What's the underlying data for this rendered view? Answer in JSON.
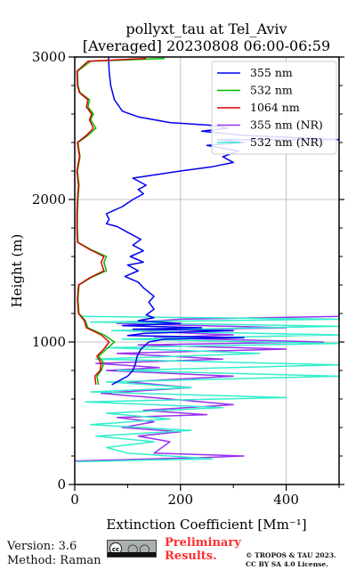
{
  "chart_data": {
    "type": "line",
    "title_line1": "pollyxt_tau at Tel_Aviv",
    "title_line2": "[Averaged] 20230808 06:00-06:59",
    "xlabel": "Extinction Coefficient [Mm⁻¹]",
    "ylabel": "Height (m)",
    "xlim": [
      0,
      500
    ],
    "ylim": [
      0,
      3000
    ],
    "xticks": [
      0,
      200,
      400
    ],
    "yticks": [
      0,
      1000,
      2000,
      3000
    ],
    "grid": true,
    "legend_position": "top-right",
    "series": [
      {
        "name": "355 nm",
        "color": "#0000ee",
        "points": [
          [
            70,
            700
          ],
          [
            85,
            730
          ],
          [
            100,
            760
          ],
          [
            110,
            800
          ],
          [
            115,
            850
          ],
          [
            118,
            900
          ],
          [
            125,
            950
          ],
          [
            140,
            1000
          ],
          [
            170,
            1020
          ],
          [
            320,
            1030
          ],
          [
            100,
            1045
          ],
          [
            130,
            1060
          ],
          [
            300,
            1080
          ],
          [
            110,
            1090
          ],
          [
            240,
            1100
          ],
          [
            90,
            1115
          ],
          [
            200,
            1130
          ],
          [
            120,
            1150
          ],
          [
            150,
            1170
          ],
          [
            135,
            1190
          ],
          [
            150,
            1230
          ],
          [
            140,
            1280
          ],
          [
            150,
            1320
          ],
          [
            130,
            1380
          ],
          [
            120,
            1420
          ],
          [
            95,
            1460
          ],
          [
            120,
            1500
          ],
          [
            100,
            1540
          ],
          [
            130,
            1560
          ],
          [
            105,
            1600
          ],
          [
            130,
            1640
          ],
          [
            110,
            1680
          ],
          [
            125,
            1720
          ],
          [
            100,
            1770
          ],
          [
            80,
            1810
          ],
          [
            60,
            1830
          ],
          [
            65,
            1860
          ],
          [
            60,
            1900
          ],
          [
            90,
            1950
          ],
          [
            110,
            2000
          ],
          [
            130,
            2040
          ],
          [
            120,
            2070
          ],
          [
            135,
            2100
          ],
          [
            110,
            2150
          ],
          [
            200,
            2200
          ],
          [
            260,
            2230
          ],
          [
            300,
            2260
          ],
          [
            280,
            2300
          ],
          [
            310,
            2340
          ],
          [
            250,
            2380
          ],
          [
            320,
            2400
          ],
          [
            270,
            2420
          ],
          [
            500,
            2420
          ],
          [
            320,
            2450
          ],
          [
            240,
            2480
          ],
          [
            290,
            2500
          ],
          [
            260,
            2520
          ],
          [
            180,
            2540
          ],
          [
            120,
            2580
          ],
          [
            90,
            2620
          ],
          [
            75,
            2700
          ],
          [
            68,
            2800
          ],
          [
            65,
            2900
          ],
          [
            64,
            3000
          ]
        ]
      },
      {
        "name": "532 nm",
        "color": "#00bb00",
        "points": [
          [
            45,
            700
          ],
          [
            42,
            760
          ],
          [
            50,
            800
          ],
          [
            55,
            850
          ],
          [
            45,
            900
          ],
          [
            60,
            950
          ],
          [
            75,
            1000
          ],
          [
            55,
            1050
          ],
          [
            25,
            1100
          ],
          [
            20,
            1150
          ],
          [
            8,
            1200
          ],
          [
            6,
            1300
          ],
          [
            8,
            1400
          ],
          [
            30,
            1450
          ],
          [
            60,
            1500
          ],
          [
            55,
            1560
          ],
          [
            60,
            1600
          ],
          [
            30,
            1650
          ],
          [
            6,
            1700
          ],
          [
            5,
            1800
          ],
          [
            5,
            1900
          ],
          [
            6,
            2000
          ],
          [
            8,
            2100
          ],
          [
            5,
            2200
          ],
          [
            10,
            2300
          ],
          [
            6,
            2400
          ],
          [
            25,
            2450
          ],
          [
            40,
            2500
          ],
          [
            30,
            2560
          ],
          [
            35,
            2600
          ],
          [
            25,
            2650
          ],
          [
            28,
            2700
          ],
          [
            10,
            2750
          ],
          [
            6,
            2800
          ],
          [
            5,
            2900
          ],
          [
            30,
            2970
          ],
          [
            170,
            2990
          ]
        ]
      },
      {
        "name": "1064 nm",
        "color": "#dd0000",
        "points": [
          [
            40,
            700
          ],
          [
            38,
            760
          ],
          [
            48,
            800
          ],
          [
            50,
            850
          ],
          [
            42,
            900
          ],
          [
            55,
            950
          ],
          [
            65,
            1000
          ],
          [
            50,
            1050
          ],
          [
            22,
            1100
          ],
          [
            18,
            1150
          ],
          [
            7,
            1200
          ],
          [
            5,
            1300
          ],
          [
            7,
            1400
          ],
          [
            28,
            1450
          ],
          [
            55,
            1500
          ],
          [
            50,
            1560
          ],
          [
            55,
            1600
          ],
          [
            28,
            1650
          ],
          [
            5,
            1700
          ],
          [
            4,
            1800
          ],
          [
            4,
            1900
          ],
          [
            5,
            2000
          ],
          [
            7,
            2100
          ],
          [
            4,
            2200
          ],
          [
            9,
            2300
          ],
          [
            5,
            2400
          ],
          [
            22,
            2450
          ],
          [
            35,
            2500
          ],
          [
            28,
            2560
          ],
          [
            32,
            2600
          ],
          [
            22,
            2650
          ],
          [
            25,
            2700
          ],
          [
            9,
            2750
          ],
          [
            5,
            2800
          ],
          [
            4,
            2900
          ],
          [
            25,
            2970
          ],
          [
            135,
            2990
          ]
        ]
      },
      {
        "name": "355 nm (NR)",
        "color": "#9933ee",
        "points": [
          [
            0,
            165
          ],
          [
            100,
            175
          ],
          [
            250,
            190
          ],
          [
            320,
            200
          ],
          [
            150,
            220
          ],
          [
            180,
            300
          ],
          [
            120,
            340
          ],
          [
            200,
            370
          ],
          [
            90,
            400
          ],
          [
            150,
            440
          ],
          [
            80,
            470
          ],
          [
            250,
            490
          ],
          [
            130,
            520
          ],
          [
            300,
            560
          ],
          [
            180,
            600
          ],
          [
            50,
            640
          ],
          [
            220,
            680
          ],
          [
            100,
            720
          ],
          [
            300,
            760
          ],
          [
            60,
            800
          ],
          [
            160,
            820
          ],
          [
            40,
            850
          ],
          [
            280,
            880
          ],
          [
            80,
            920
          ],
          [
            400,
            950
          ],
          [
            120,
            980
          ],
          [
            470,
            1000
          ],
          [
            150,
            1030
          ],
          [
            300,
            1050
          ],
          [
            100,
            1080
          ],
          [
            400,
            1100
          ],
          [
            80,
            1130
          ],
          [
            200,
            1160
          ],
          [
            500,
            1180
          ],
          [
            500,
            1510
          ]
        ]
      },
      {
        "name": "532 nm (NR)",
        "color": "#33eecc",
        "points": [
          [
            5,
            160
          ],
          [
            120,
            170
          ],
          [
            260,
            180
          ],
          [
            100,
            220
          ],
          [
            60,
            260
          ],
          [
            150,
            300
          ],
          [
            40,
            340
          ],
          [
            220,
            380
          ],
          [
            30,
            420
          ],
          [
            180,
            460
          ],
          [
            60,
            500
          ],
          [
            280,
            540
          ],
          [
            20,
            580
          ],
          [
            400,
            610
          ],
          [
            30,
            650
          ],
          [
            220,
            680
          ],
          [
            60,
            720
          ],
          [
            500,
            760
          ],
          [
            80,
            800
          ],
          [
            500,
            840
          ],
          [
            40,
            880
          ],
          [
            350,
            920
          ],
          [
            60,
            960
          ],
          [
            500,
            990
          ],
          [
            90,
            1020
          ],
          [
            500,
            1050
          ],
          [
            70,
            1080
          ],
          [
            500,
            1110
          ],
          [
            30,
            1140
          ],
          [
            500,
            1160
          ],
          [
            10,
            1180
          ]
        ]
      }
    ]
  },
  "footer": {
    "version": "Version: 3.6",
    "method": "Method: Raman",
    "preliminary_line1": "Preliminary",
    "preliminary_line2": "Results.",
    "copyright_line1": "© TROPOS & TAU 2023.",
    "copyright_line2": "CC BY SA 4.0 License."
  }
}
